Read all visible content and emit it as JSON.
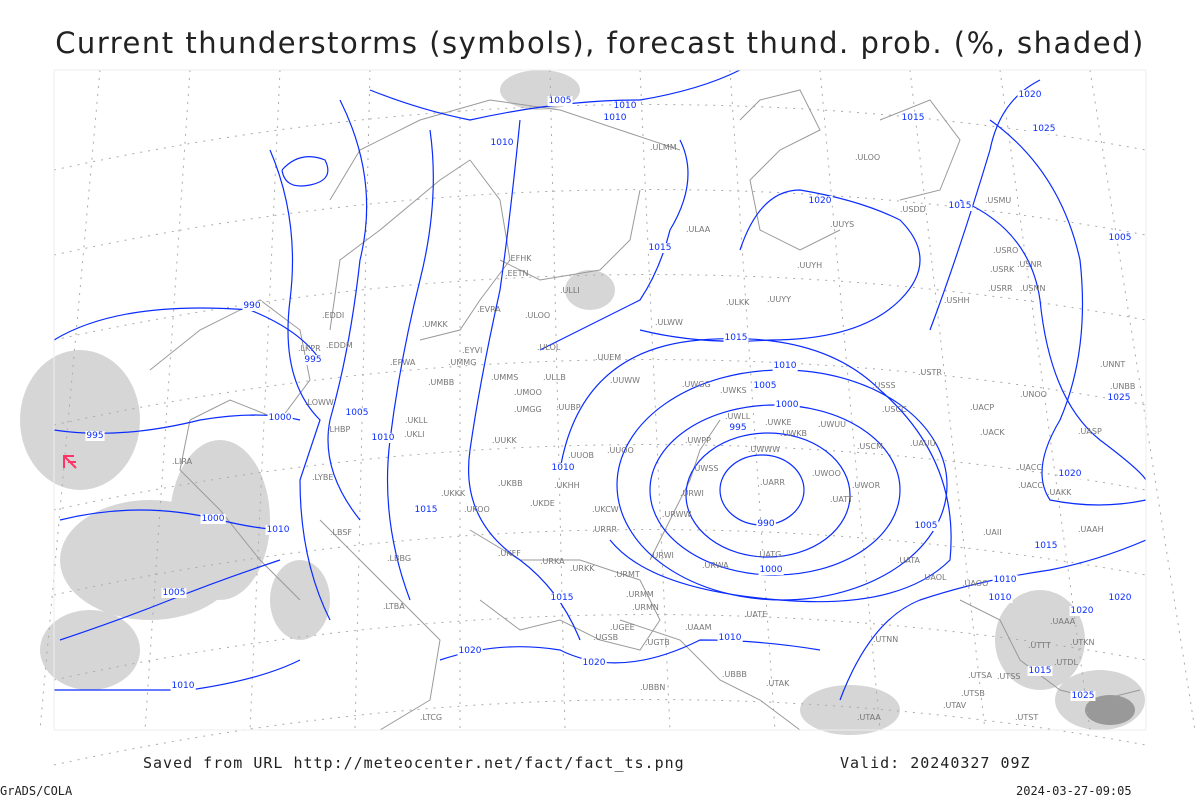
{
  "title": "Current thunderstorms (symbols), forecast thund. prob. (%, shaded)",
  "footer": {
    "saved_from": "Saved from URL http://meteocenter.net/fact/fact_ts.png",
    "valid": "Valid: 20240327 09Z",
    "software": "GrADS/COLA",
    "timestamp": "2024-03-27-09:05"
  },
  "colors": {
    "isobar": "#0a2cff",
    "coastline": "#999999",
    "station": "#777777",
    "shading": "#cfcfcf",
    "thunderstorm_symbol": "#ff3366"
  },
  "map": {
    "stations": [
      "ULMM",
      "ULOO",
      "USDD",
      "USMU",
      "UUYS",
      "ULAA",
      "UUYH",
      "USRO",
      "USRK",
      "USNR",
      "USRR",
      "USNN",
      "ULKK",
      "UUYY",
      "USHH",
      "ULWW",
      "EFHK",
      "EETN",
      "ULLI",
      "ULOL",
      "ULOO",
      "EVRA",
      "UMKK",
      "EDDI",
      "EPWA",
      "UMMG",
      "EYVI",
      "UMBB",
      "UMMS",
      "UMOO",
      "ULLB",
      "UUEM",
      "UUWW",
      "UWGG",
      "UWKS",
      "UWKE",
      "UWKB",
      "UWUU",
      "UWLL",
      "UWWW",
      "UWPP",
      "UWSS",
      "URWI",
      "URWW",
      "UARR",
      "UWOO",
      "UWOR",
      "UATT",
      "USCM",
      "USCC",
      "USSS",
      "USTR",
      "UAUU",
      "UACP",
      "UACK",
      "UNOO",
      "UASP",
      "UACC",
      "UAKK",
      "UNNT",
      "UNBB",
      "URRR",
      "UKCW",
      "UKHH",
      "UKDE",
      "UKFF",
      "URKA",
      "URKK",
      "URMT",
      "URWA",
      "UATG",
      "URWI",
      "UATA",
      "UAOL",
      "UAOO",
      "URMN",
      "URMM",
      "UGSB",
      "UGTB",
      "UBBB",
      "UTAK",
      "UATE",
      "UAAM",
      "UTNN",
      "UTSA",
      "UTSB",
      "UTSS",
      "UTAV",
      "UTST",
      "UTAA",
      "UUOO",
      "UUOB",
      "UUBP",
      "UMGG",
      "UUKK",
      "UKLL",
      "UKLI",
      "LKPR",
      "LOWW",
      "LHBP",
      "LYBE",
      "LBSF",
      "UKKK",
      "LBBG",
      "LTBA",
      "LIRA",
      "EDDM",
      "UKOO",
      "UAAH",
      "UTTT",
      "UTKN",
      "UTDL",
      "UAII",
      "UAAA",
      "UACC",
      "UKBB",
      "UGEE",
      "UBBN",
      "LTCG"
    ],
    "isobar_labels": [
      "1005",
      "1010",
      "1010",
      "1015",
      "1020",
      "1025",
      "1020",
      "1015",
      "1015",
      "990",
      "995",
      "1015",
      "1010",
      "1005",
      "1000",
      "995",
      "990",
      "1000",
      "1005",
      "1015",
      "1010",
      "1005",
      "1000",
      "1010",
      "995",
      "1010",
      "1015",
      "1000",
      "1010",
      "1005",
      "1015",
      "1010",
      "1020",
      "1020",
      "1010",
      "1020",
      "1025",
      "1020",
      "1015",
      "1025",
      "1020",
      "1010",
      "1005",
      "1010"
    ],
    "thunderstorm_symbol": "thunderstorm-icon"
  }
}
